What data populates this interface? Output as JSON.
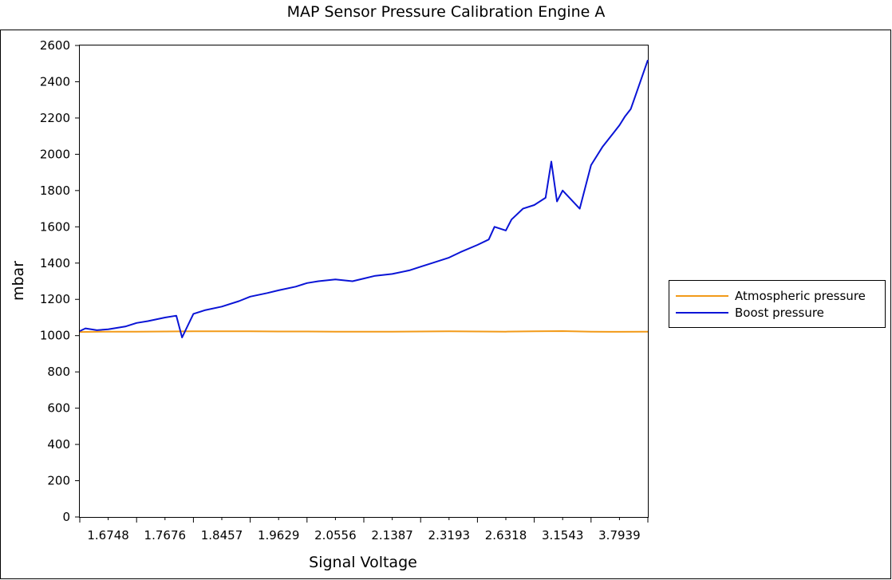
{
  "chart_data": {
    "type": "line",
    "title": "MAP Sensor Pressure Calibration Engine A",
    "xlabel": "Signal Voltage",
    "ylabel": "mbar",
    "x_tick_labels": [
      "1.6748",
      "1.7676",
      "1.8457",
      "1.9629",
      "2.0556",
      "2.1387",
      "2.3193",
      "2.6318",
      "3.1543",
      "3.7939"
    ],
    "x_index_range": [
      0,
      100
    ],
    "x_tick_positions": [
      5,
      15,
      25,
      35,
      45,
      55,
      65,
      75,
      85,
      95
    ],
    "ylim": [
      0,
      2600
    ],
    "y_ticks": [
      0,
      200,
      400,
      600,
      800,
      1000,
      1200,
      1400,
      1600,
      1800,
      2000,
      2200,
      2400,
      2600
    ],
    "grid": false,
    "legend_position": "right",
    "series": [
      {
        "name": "Atmospheric pressure",
        "color": "#f29a18",
        "x": [
          0,
          5,
          10,
          15,
          20,
          25,
          30,
          35,
          40,
          45,
          50,
          55,
          60,
          65,
          70,
          75,
          80,
          85,
          90,
          95,
          100
        ],
        "values": [
          1020,
          1022,
          1022,
          1023,
          1024,
          1024,
          1024,
          1023,
          1023,
          1022,
          1022,
          1022,
          1023,
          1024,
          1023,
          1022,
          1024,
          1025,
          1022,
          1021,
          1022
        ]
      },
      {
        "name": "Boost pressure",
        "color": "#0a14d6",
        "x": [
          0,
          1,
          3,
          5,
          8,
          10,
          12,
          15,
          17,
          18,
          20,
          22,
          25,
          28,
          30,
          33,
          35,
          38,
          40,
          42,
          45,
          48,
          50,
          52,
          55,
          58,
          60,
          62,
          65,
          67,
          70,
          72,
          73,
          75,
          76,
          78,
          80,
          82,
          83,
          84,
          85,
          88,
          90,
          92,
          94,
          95,
          96,
          97,
          98,
          100
        ],
        "values": [
          1025,
          1040,
          1030,
          1035,
          1050,
          1070,
          1080,
          1100,
          1110,
          990,
          1120,
          1140,
          1160,
          1190,
          1215,
          1235,
          1250,
          1270,
          1290,
          1300,
          1310,
          1300,
          1315,
          1330,
          1340,
          1360,
          1380,
          1400,
          1430,
          1460,
          1500,
          1530,
          1600,
          1580,
          1640,
          1700,
          1720,
          1760,
          1960,
          1740,
          1800,
          1700,
          1940,
          2040,
          2120,
          2160,
          2210,
          2250,
          2340,
          2520
        ]
      }
    ]
  }
}
